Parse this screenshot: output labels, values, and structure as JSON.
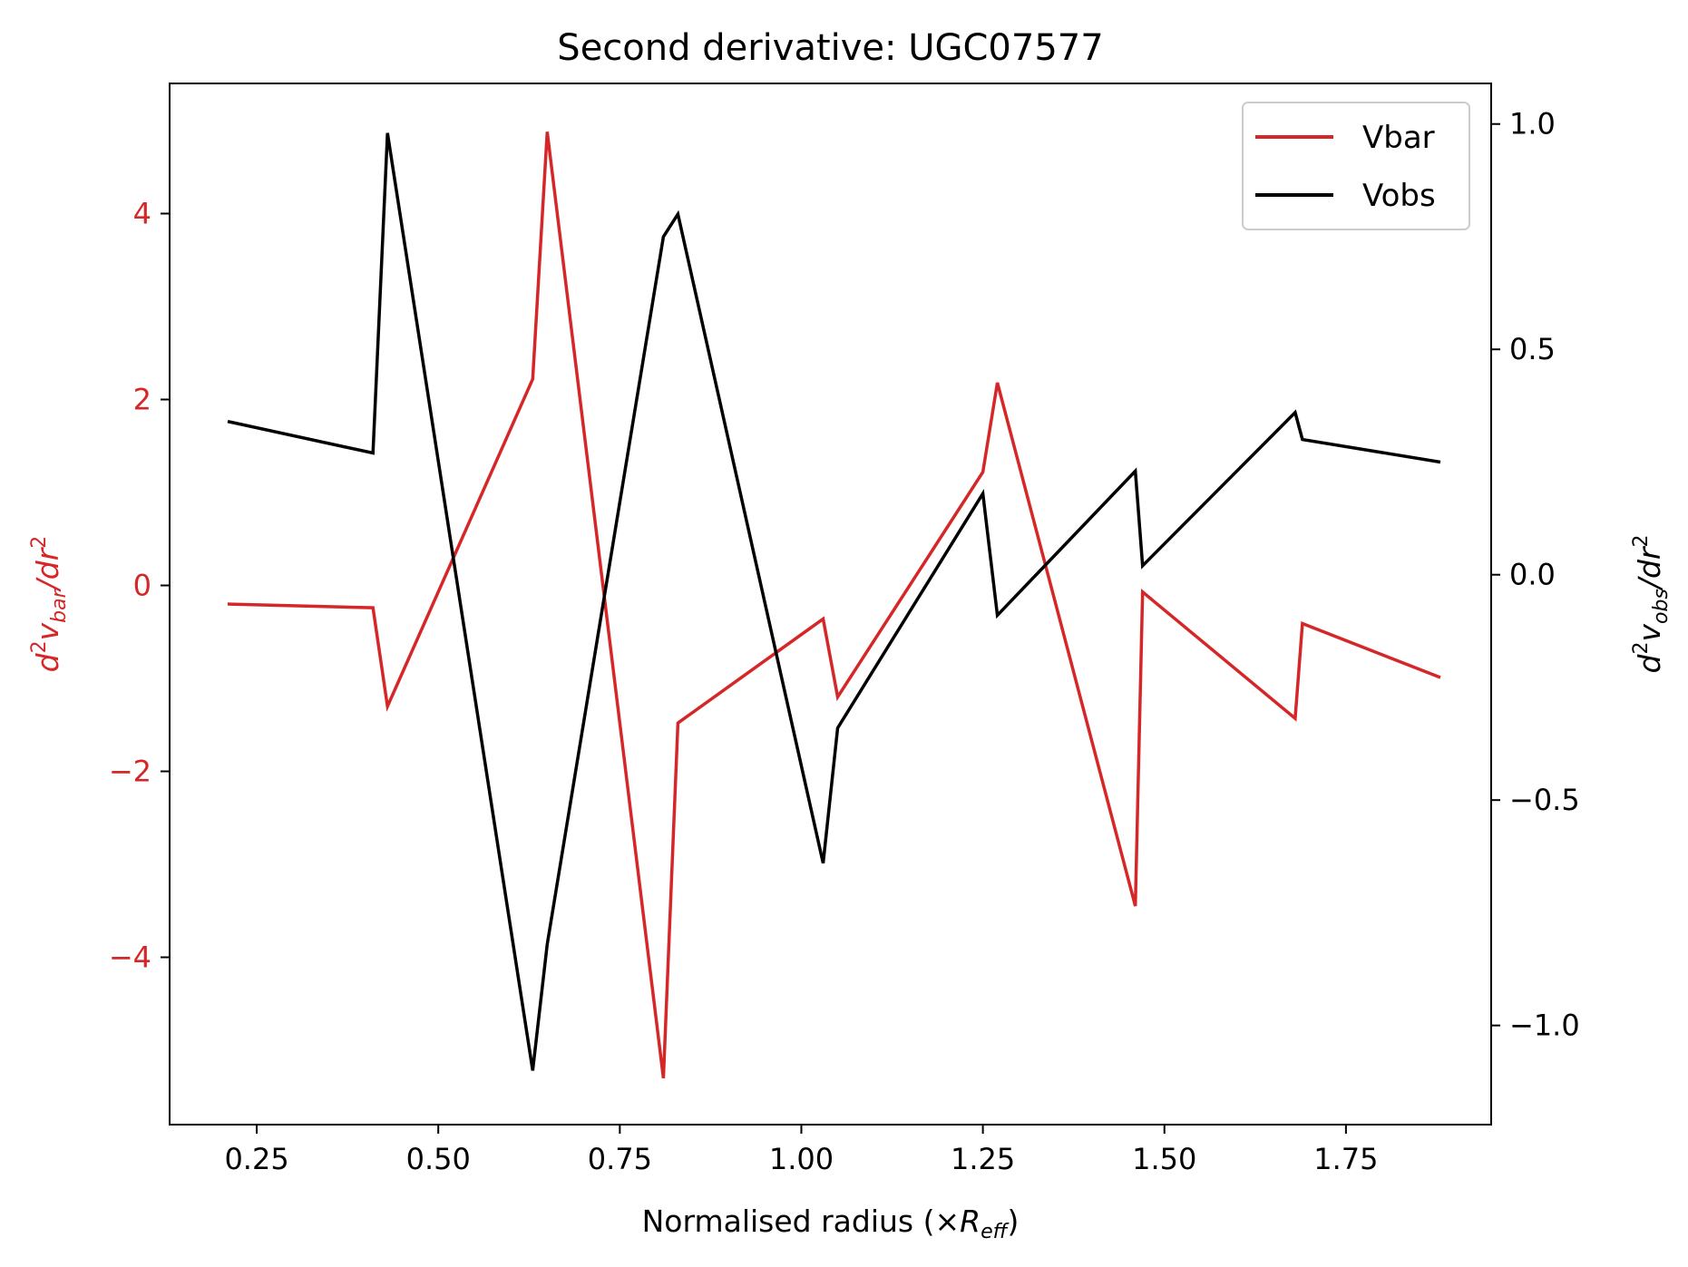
{
  "chart_data": {
    "type": "line",
    "title": "Second derivative: UGC07577",
    "xlabel": {
      "main": "Normalised radius (×",
      "sym": "R",
      "sub": "eff",
      "end": ")"
    },
    "ylabel_left": {
      "d": "d",
      "sup": "2",
      "v": "v",
      "vsub": "bar",
      "dr": "/dr",
      "sup2": "2"
    },
    "ylabel_right": {
      "d": "d",
      "sup": "2",
      "v": "v",
      "vsub": "obs",
      "dr": "/dr",
      "sup2": "2"
    },
    "xlim": [
      0.13,
      1.95
    ],
    "ylim_left": [
      -5.8,
      5.4
    ],
    "ylim_right": [
      -1.22,
      1.09
    ],
    "x_ticks": [
      "0.25",
      "0.50",
      "0.75",
      "1.00",
      "1.25",
      "1.50",
      "1.75"
    ],
    "x_tick_values": [
      0.25,
      0.5,
      0.75,
      1.0,
      1.25,
      1.5,
      1.75
    ],
    "yl_ticks": [
      "−4",
      "−2",
      "0",
      "2",
      "4"
    ],
    "yl_tick_values": [
      -4,
      -2,
      0,
      2,
      4
    ],
    "yr_ticks": [
      "−1.0",
      "−0.5",
      "0.0",
      "0.5",
      "1.0"
    ],
    "yr_tick_values": [
      -1.0,
      -0.5,
      0.0,
      0.5,
      1.0
    ],
    "colors": {
      "vbar": "#d62728",
      "vobs": "#000000",
      "left_axis": "#d62728"
    },
    "legend_position": "top-right",
    "grid": false,
    "series": [
      {
        "name": "Vbar",
        "axis": "left",
        "x": [
          0.21,
          0.41,
          0.43,
          0.63,
          0.65,
          0.81,
          0.83,
          1.03,
          1.05,
          1.25,
          1.27,
          1.46,
          1.47,
          1.68,
          1.69,
          1.88
        ],
        "values": [
          -0.2,
          -0.24,
          -1.3,
          2.22,
          4.88,
          -5.3,
          -1.48,
          -0.36,
          -1.2,
          1.22,
          2.18,
          -3.45,
          -0.07,
          -1.43,
          -0.41,
          -0.99
        ]
      },
      {
        "name": "Vobs",
        "axis": "right",
        "x": [
          0.21,
          0.41,
          0.43,
          0.63,
          0.65,
          0.81,
          0.83,
          1.03,
          1.05,
          1.25,
          1.27,
          1.46,
          1.47,
          1.68,
          1.69,
          1.88
        ],
        "values": [
          0.34,
          0.27,
          0.98,
          -1.1,
          -0.82,
          0.75,
          0.8,
          -0.64,
          -0.34,
          0.18,
          -0.09,
          0.23,
          0.02,
          0.36,
          0.3,
          0.25
        ]
      }
    ]
  }
}
